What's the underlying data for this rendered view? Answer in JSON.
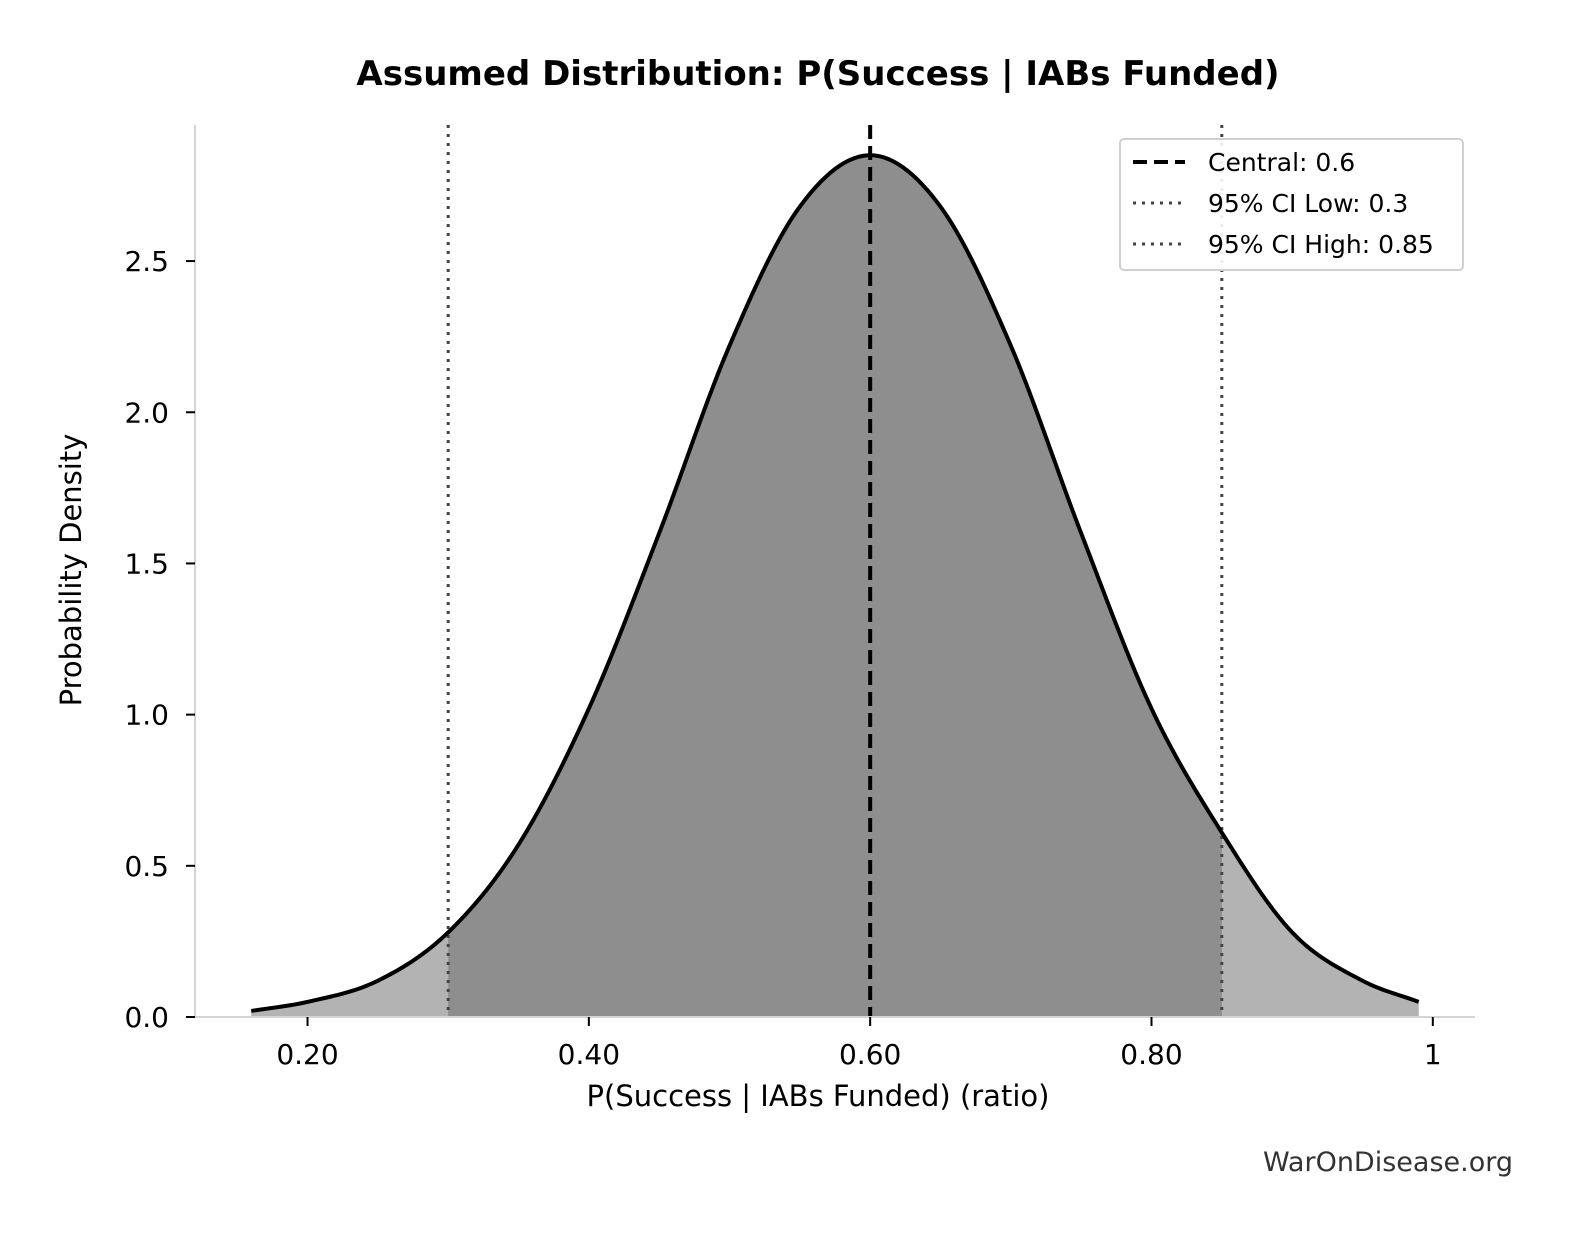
{
  "chart_data": {
    "type": "area",
    "title": "Assumed Distribution: P(Success | IABs Funded)",
    "xlabel": "P(Success | IABs Funded) (ratio)",
    "ylabel": "Probability Density",
    "xlim": [
      0.12,
      1.03
    ],
    "ylim": [
      0,
      2.95
    ],
    "x_ticks": [
      {
        "value": 0.2,
        "label": "0.20"
      },
      {
        "value": 0.4,
        "label": "0.40"
      },
      {
        "value": 0.6,
        "label": "0.60"
      },
      {
        "value": 0.8,
        "label": "0.80"
      },
      {
        "value": 1.0,
        "label": "1"
      }
    ],
    "y_ticks": [
      {
        "value": 0.0,
        "label": "0.0"
      },
      {
        "value": 0.5,
        "label": "0.5"
      },
      {
        "value": 1.0,
        "label": "1.0"
      },
      {
        "value": 1.5,
        "label": "1.5"
      },
      {
        "value": 2.0,
        "label": "2.0"
      },
      {
        "value": 2.5,
        "label": "2.5"
      }
    ],
    "series": [
      {
        "x": [
          0.16,
          0.2,
          0.25,
          0.3,
          0.35,
          0.4,
          0.45,
          0.5,
          0.55,
          0.6,
          0.65,
          0.7,
          0.75,
          0.8,
          0.85,
          0.9,
          0.95,
          0.99
        ],
        "y": [
          0.02,
          0.05,
          0.12,
          0.28,
          0.57,
          1.02,
          1.6,
          2.22,
          2.68,
          2.85,
          2.68,
          2.22,
          1.6,
          1.02,
          0.61,
          0.28,
          0.12,
          0.05
        ]
      }
    ],
    "reference_lines": [
      {
        "label": "Central: 0.6",
        "x": 0.6,
        "style": "dashed",
        "color": "#000000"
      },
      {
        "label": "95% CI Low: 0.3",
        "x": 0.3,
        "style": "dotted",
        "color": "#444444"
      },
      {
        "label": "95% CI High: 0.85",
        "x": 0.85,
        "style": "dotted",
        "color": "#444444"
      }
    ],
    "shading": {
      "inner_range": [
        0.3,
        0.85
      ],
      "inner_color": "#8e8e8e",
      "outer_color": "#b3b3b3"
    },
    "line_color": "#000000",
    "legend_position": "top-right",
    "grid": false
  },
  "watermark": "WarOnDisease.org"
}
